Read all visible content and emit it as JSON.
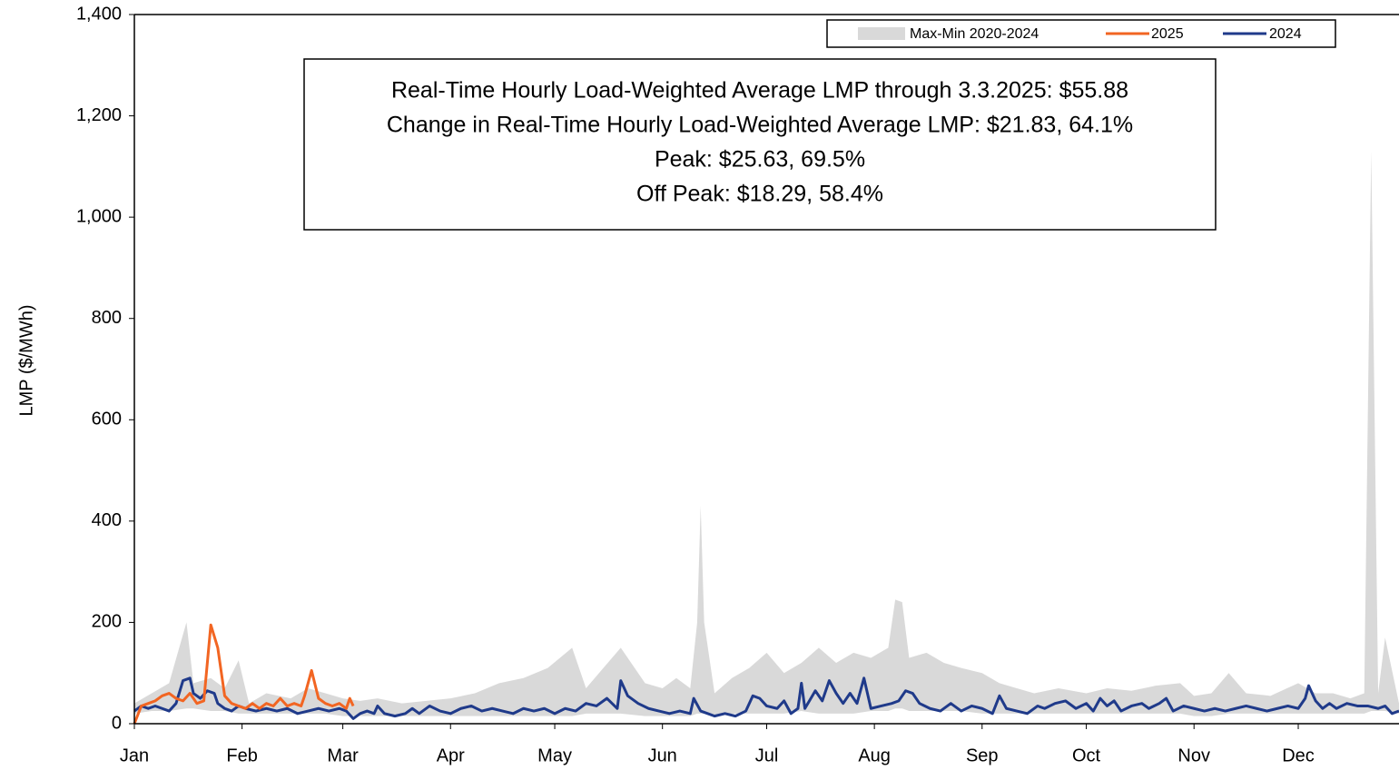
{
  "chart_data": {
    "type": "line",
    "y_label": "LMP ($/MWh)",
    "annotations": [
      "Real-Time Hourly Load-Weighted Average LMP through 3.3.2025: $55.88",
      "Change in Real-Time Hourly Load-Weighted Average LMP: $21.83, 64.1%",
      "Peak: $25.63, 69.5%",
      "Off Peak: $18.29, 58.4%"
    ],
    "legend": "top-right",
    "xlim": [
      0,
      364
    ],
    "xticks": [
      {
        "value": 0,
        "label": "Jan"
      },
      {
        "value": 31,
        "label": "Feb"
      },
      {
        "value": 60,
        "label": "Mar"
      },
      {
        "value": 91,
        "label": "Apr"
      },
      {
        "value": 121,
        "label": "May"
      },
      {
        "value": 152,
        "label": "Jun"
      },
      {
        "value": 182,
        "label": "Jul"
      },
      {
        "value": 213,
        "label": "Aug"
      },
      {
        "value": 244,
        "label": "Sep"
      },
      {
        "value": 274,
        "label": "Oct"
      },
      {
        "value": 305,
        "label": "Nov"
      },
      {
        "value": 335,
        "label": "Dec"
      }
    ],
    "ylim": [
      0,
      1400
    ],
    "yticks": [
      0,
      200,
      400,
      600,
      800,
      {
        "value": 1000,
        "label": "1,000"
      },
      {
        "value": 1200,
        "label": "1,200"
      },
      {
        "value": 1400,
        "label": "1,400"
      }
    ],
    "series": [
      {
        "name": "Max-Min 2020-2024",
        "color": "#d9d9d9",
        "kind": "band",
        "x": [
          0,
          5,
          10,
          15,
          17,
          22,
          26,
          30,
          33,
          38,
          45,
          50,
          55,
          60,
          65,
          70,
          77,
          84,
          91,
          98,
          105,
          112,
          119,
          126,
          130,
          135,
          140,
          147,
          152,
          156,
          160,
          162,
          163,
          164,
          167,
          172,
          177,
          182,
          187,
          192,
          197,
          202,
          207,
          212,
          217,
          219,
          221,
          223,
          228,
          233,
          238,
          244,
          249,
          254,
          259,
          266,
          274,
          280,
          287,
          294,
          301,
          305,
          310,
          315,
          320,
          327,
          335,
          340,
          345,
          350,
          354,
          356,
          358,
          360,
          364
        ],
        "low": [
          20,
          25,
          25,
          30,
          30,
          25,
          25,
          20,
          20,
          20,
          20,
          20,
          20,
          15,
          15,
          15,
          15,
          15,
          15,
          15,
          15,
          15,
          15,
          15,
          20,
          20,
          20,
          15,
          15,
          15,
          15,
          20,
          20,
          20,
          15,
          20,
          20,
          20,
          20,
          25,
          20,
          20,
          20,
          25,
          25,
          30,
          30,
          25,
          25,
          25,
          25,
          20,
          20,
          20,
          20,
          20,
          20,
          20,
          20,
          20,
          20,
          15,
          15,
          20,
          20,
          20,
          20,
          20,
          20,
          20,
          20,
          25,
          25,
          25,
          20
        ],
        "high": [
          40,
          60,
          80,
          200,
          80,
          90,
          70,
          125,
          40,
          60,
          50,
          70,
          60,
          50,
          45,
          50,
          40,
          45,
          50,
          60,
          80,
          90,
          110,
          150,
          70,
          110,
          150,
          80,
          70,
          90,
          70,
          200,
          430,
          200,
          60,
          90,
          110,
          140,
          100,
          120,
          150,
          120,
          140,
          130,
          150,
          245,
          240,
          130,
          140,
          120,
          110,
          100,
          80,
          70,
          60,
          70,
          60,
          70,
          65,
          75,
          80,
          55,
          60,
          100,
          60,
          55,
          80,
          60,
          60,
          50,
          60,
          1130,
          60,
          170,
          40
        ]
      },
      {
        "name": "2025",
        "color": "#f26522",
        "x": [
          0,
          2,
          4,
          6,
          8,
          10,
          12,
          14,
          16,
          18,
          20,
          22,
          24,
          26,
          28,
          30,
          32,
          34,
          36,
          38,
          40,
          42,
          44,
          46,
          48,
          49,
          51,
          53,
          55,
          57,
          59,
          61,
          62,
          63
        ],
        "values": [
          0,
          35,
          40,
          45,
          55,
          60,
          50,
          45,
          60,
          40,
          45,
          195,
          150,
          55,
          40,
          35,
          30,
          40,
          30,
          40,
          35,
          50,
          35,
          40,
          35,
          55,
          105,
          50,
          40,
          35,
          40,
          30,
          50,
          35
        ]
      },
      {
        "name": "2024",
        "color": "#1f3a8a",
        "x": [
          0,
          2,
          4,
          6,
          8,
          10,
          12,
          14,
          16,
          17,
          19,
          21,
          23,
          24,
          26,
          28,
          30,
          32,
          35,
          38,
          41,
          44,
          47,
          50,
          53,
          56,
          59,
          61,
          63,
          65,
          67,
          69,
          70,
          72,
          75,
          78,
          80,
          82,
          85,
          88,
          91,
          94,
          97,
          100,
          103,
          106,
          109,
          112,
          115,
          118,
          121,
          124,
          127,
          130,
          133,
          136,
          139,
          140,
          142,
          145,
          148,
          151,
          154,
          157,
          160,
          161,
          163,
          165,
          167,
          170,
          173,
          176,
          178,
          180,
          182,
          185,
          187,
          189,
          191,
          192,
          193,
          196,
          198,
          200,
          202,
          204,
          206,
          208,
          210,
          212,
          215,
          218,
          220,
          222,
          224,
          226,
          229,
          232,
          235,
          238,
          241,
          244,
          247,
          249,
          251,
          254,
          257,
          260,
          262,
          265,
          268,
          271,
          274,
          276,
          278,
          280,
          282,
          284,
          287,
          290,
          292,
          295,
          297,
          299,
          302,
          305,
          308,
          311,
          314,
          317,
          320,
          323,
          326,
          329,
          332,
          335,
          337,
          338,
          340,
          342,
          344,
          346,
          349,
          352,
          355,
          358,
          360,
          362,
          364
        ],
        "values": [
          25,
          35,
          30,
          35,
          30,
          25,
          40,
          85,
          90,
          60,
          50,
          65,
          60,
          40,
          30,
          25,
          35,
          30,
          25,
          30,
          25,
          30,
          20,
          25,
          30,
          25,
          30,
          25,
          10,
          20,
          25,
          20,
          35,
          20,
          15,
          20,
          30,
          20,
          35,
          25,
          20,
          30,
          35,
          25,
          30,
          25,
          20,
          30,
          25,
          30,
          20,
          30,
          25,
          40,
          35,
          50,
          30,
          85,
          55,
          40,
          30,
          25,
          20,
          25,
          20,
          50,
          25,
          20,
          15,
          20,
          15,
          25,
          55,
          50,
          35,
          30,
          45,
          20,
          30,
          80,
          30,
          65,
          45,
          85,
          60,
          40,
          60,
          40,
          90,
          30,
          35,
          40,
          45,
          65,
          60,
          40,
          30,
          25,
          40,
          25,
          35,
          30,
          20,
          55,
          30,
          25,
          20,
          35,
          30,
          40,
          45,
          30,
          40,
          25,
          50,
          35,
          45,
          25,
          35,
          40,
          30,
          40,
          50,
          25,
          35,
          30,
          25,
          30,
          25,
          30,
          35,
          30,
          25,
          30,
          35,
          30,
          50,
          75,
          45,
          30,
          40,
          30,
          40,
          35,
          35,
          30,
          35,
          20,
          25
        ]
      }
    ]
  }
}
